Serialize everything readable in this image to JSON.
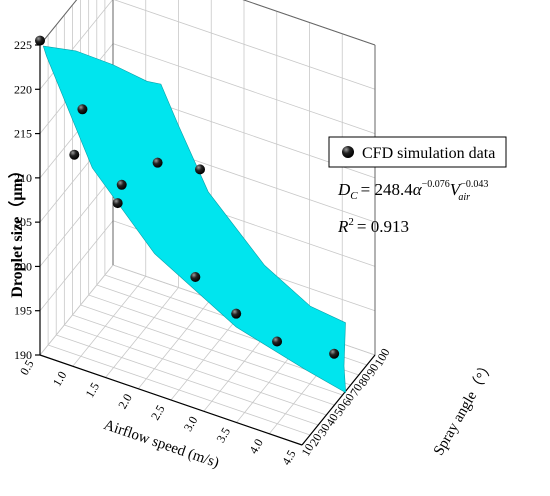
{
  "chart_data": {
    "type": "scatter",
    "kind": "3d-scatter-with-fitted-surface",
    "title": "",
    "xlabel": "Airflow speed (m/s)",
    "ylabel": "Spray angle（°）",
    "zlabel": "Droplet size（μm）",
    "xlim": [
      0.5,
      4.5
    ],
    "ylim": [
      10,
      100
    ],
    "zlim": [
      190,
      225
    ],
    "x_ticks": [
      "0.5",
      "1.0",
      "1.5",
      "2.0",
      "2.5",
      "3.0",
      "3.5",
      "4.0",
      "4.5"
    ],
    "y_ticks": [
      "10",
      "20",
      "30",
      "40",
      "50",
      "60",
      "70",
      "80",
      "90",
      "100"
    ],
    "z_ticks": [
      "190",
      "195",
      "200",
      "205",
      "210",
      "215",
      "220",
      "225"
    ],
    "surface_color": "#00e5ee",
    "point_color": "#000000",
    "legend": {
      "label": "CFD simulation data",
      "placement": "right"
    },
    "equation": {
      "lhs": "D",
      "lhs_sub": "C",
      "rhs_coef": "= 248.4",
      "alpha": "α",
      "alpha_exp": "−0.076",
      "v": "V",
      "v_sub": "air",
      "v_exp": "−0.043"
    },
    "r2": {
      "label": "R",
      "exp": "2",
      "value": "= 0.913"
    },
    "series": [
      {
        "name": "CFD simulation data",
        "points": [
          {
            "x": 0.5,
            "y": 10,
            "z": 225.5
          },
          {
            "x": 0.9,
            "y": 30,
            "z": 216.5
          },
          {
            "x": 0.9,
            "y": 20,
            "z": 212.5
          },
          {
            "x": 1.5,
            "y": 30,
            "z": 209.5
          },
          {
            "x": 1.8,
            "y": 50,
            "z": 210.5
          },
          {
            "x": 1.5,
            "y": 25,
            "z": 208
          },
          {
            "x": 2.2,
            "y": 70,
            "z": 208.5
          },
          {
            "x": 2.5,
            "y": 40,
            "z": 200.5
          },
          {
            "x": 3.0,
            "y": 50,
            "z": 196.5
          },
          {
            "x": 3.5,
            "y": 60,
            "z": 193.5
          },
          {
            "x": 4.0,
            "y": 90,
            "z": 190
          }
        ]
      }
    ]
  }
}
